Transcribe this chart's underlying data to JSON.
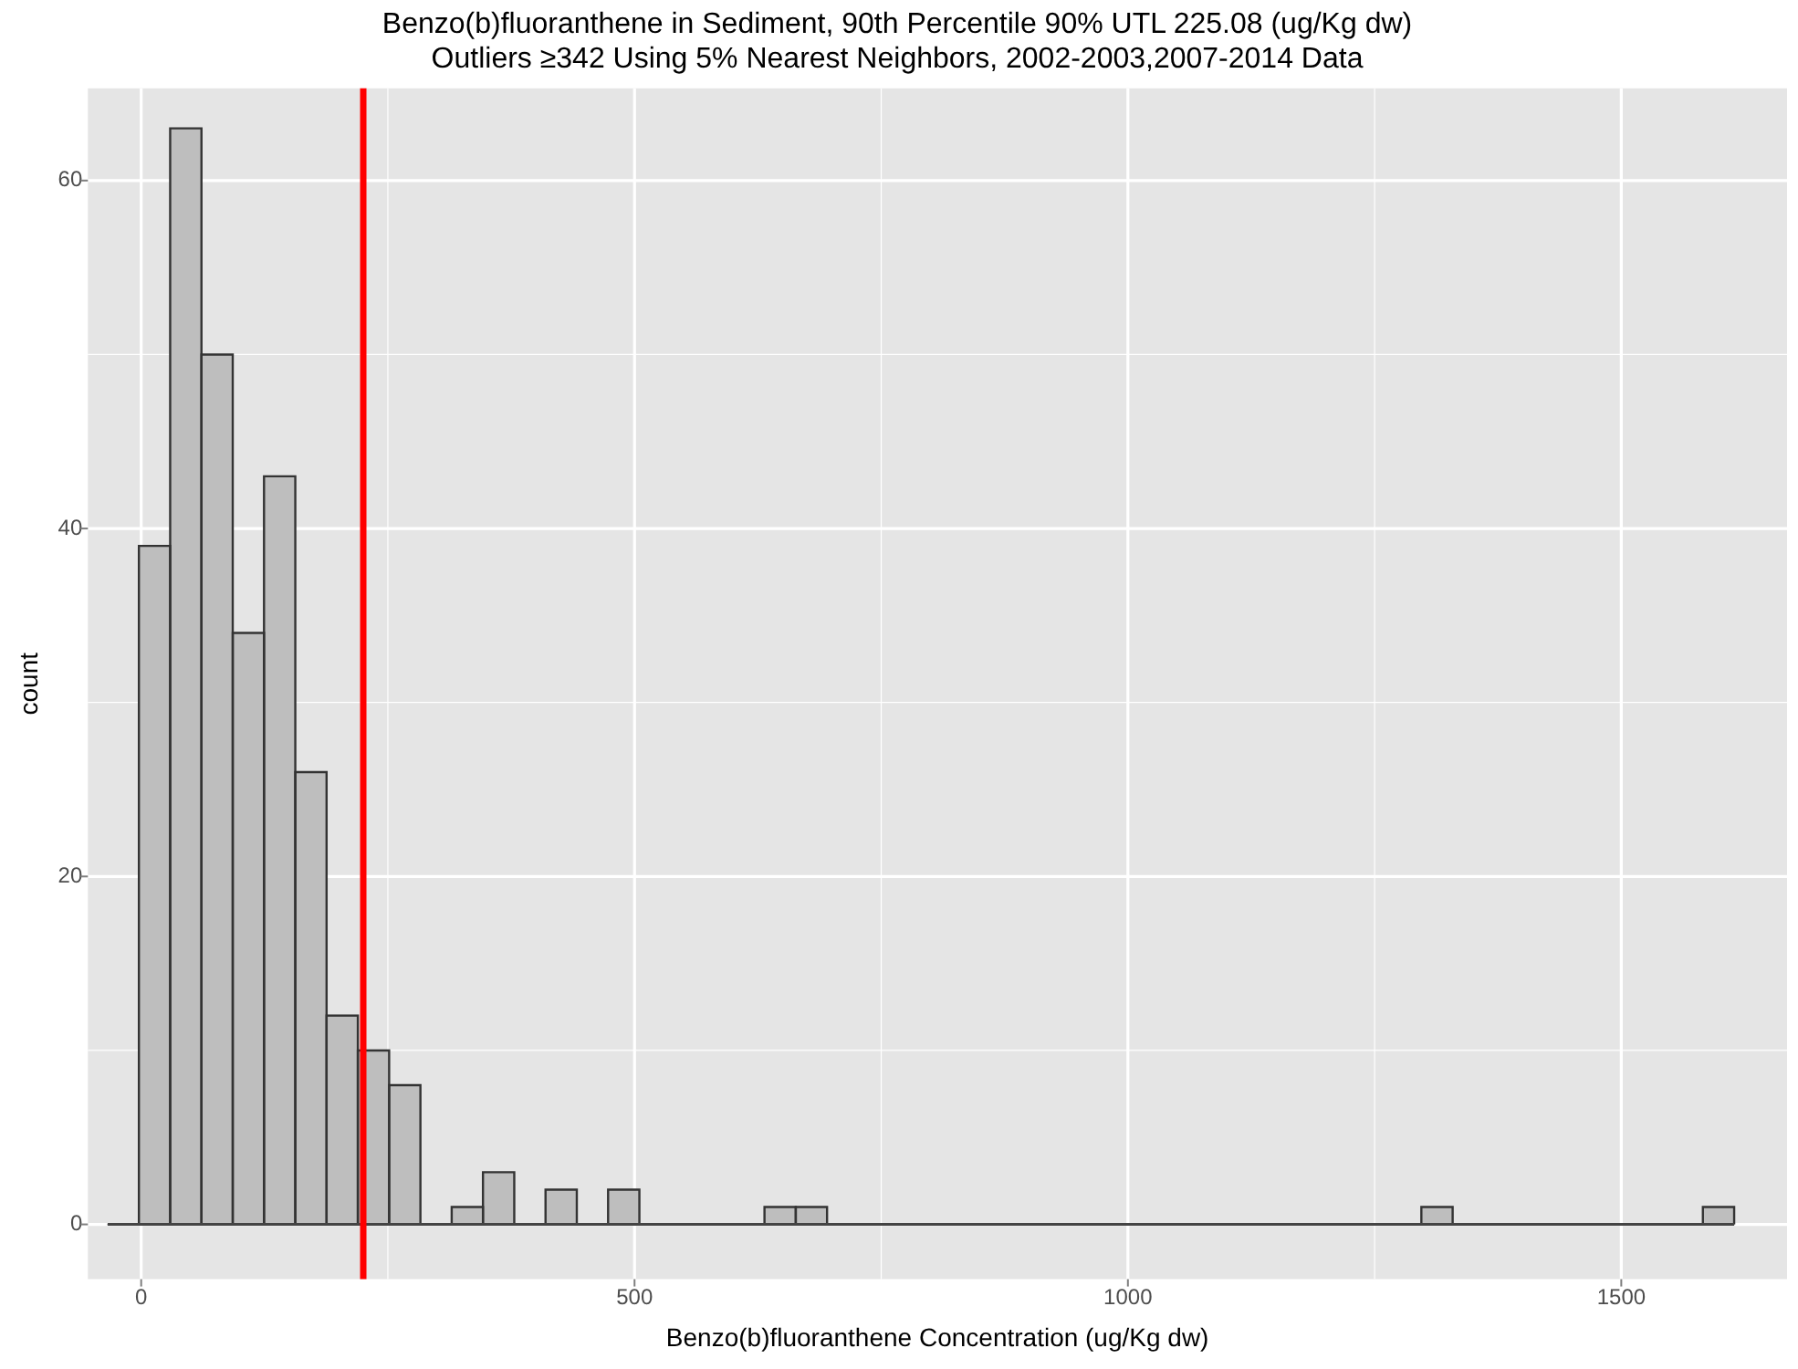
{
  "chart_data": {
    "type": "histogram",
    "title": "Benzo(b)fluoranthene in Sediment, 90th Percentile 90% UTL 225.08 (ug/Kg dw)",
    "subtitle": "Outliers ≥342 Using 5% Nearest Neighbors, 2002-2003,2007-2014 Data",
    "xlabel": "Benzo(b)fluoranthene Concentration (ug/Kg dw)",
    "ylabel": "count",
    "bins": [
      -34,
      -2.3,
      29.4,
      61.1,
      92.8,
      124.5,
      156.2,
      187.9,
      219.6,
      251.3,
      283,
      314.7,
      346.4,
      378.1,
      409.8,
      441.5,
      473.2,
      504.9,
      536.6,
      568.3,
      600,
      631.7,
      663.4,
      695.1,
      726.8,
      758.5,
      790.2,
      821.9,
      853.6,
      885.3,
      917,
      948.7,
      980.4,
      1012.1,
      1043.8,
      1075.5,
      1107.2,
      1138.9,
      1170.6,
      1202.3,
      1234,
      1265.7,
      1297.4,
      1329.1,
      1360.8,
      1392.5,
      1424.2,
      1455.9,
      1487.6,
      1519.3,
      1551,
      1582.7,
      1614.4
    ],
    "values": [
      0,
      39,
      63,
      50,
      34,
      43,
      26,
      12,
      10,
      8,
      0,
      1,
      3,
      0,
      2,
      0,
      2,
      0,
      0,
      0,
      0,
      1,
      1,
      0,
      0,
      0,
      0,
      0,
      0,
      0,
      0,
      0,
      0,
      0,
      0,
      0,
      0,
      0,
      0,
      0,
      0,
      0,
      1,
      0,
      0,
      0,
      0,
      0,
      0,
      0,
      0,
      1
    ],
    "color": "#bebebe",
    "xlim": [
      -54,
      1668
    ],
    "ylim": [
      -3.15,
      65.3
    ],
    "xticks": [
      0,
      {
        "value": 250,
        "label": null
      },
      500,
      {
        "value": 750,
        "label": null
      },
      1000,
      {
        "value": 1250,
        "label": null
      },
      1500
    ],
    "yticks": [
      0,
      {
        "value": 10,
        "label": null
      },
      20,
      {
        "value": 30,
        "label": null
      },
      40,
      {
        "value": 50,
        "label": null
      },
      60
    ],
    "grid": true,
    "ref_lines": [
      {
        "axis": "x",
        "value": 225.08,
        "color": "#ff0000"
      }
    ]
  }
}
